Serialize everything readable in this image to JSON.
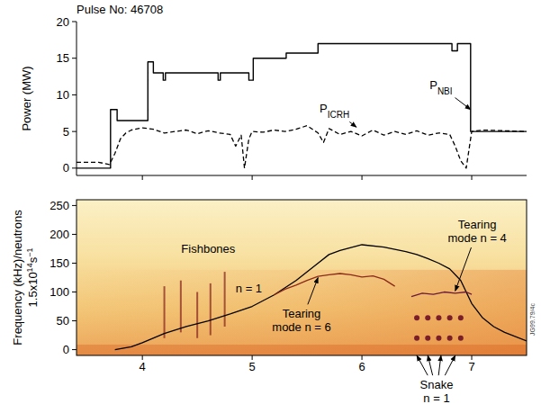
{
  "chart_data": [
    {
      "type": "line",
      "title": "Pulse No: 46708",
      "y_label": "Power (MW)",
      "xlim": [
        3.4,
        7.5
      ],
      "xticks": [
        4,
        5,
        6,
        7
      ],
      "ylim": [
        -1,
        20
      ],
      "yticks": [
        0,
        5,
        10,
        15,
        20
      ],
      "tick_labels": "y",
      "grid": false,
      "series": [
        {
          "color": "#000000",
          "line_style": "solid",
          "x": [
            3.4,
            3.71,
            3.71,
            3.77,
            3.77,
            4.05,
            4.05,
            4.1,
            4.1,
            4.19,
            4.19,
            4.21,
            4.21,
            4.69,
            4.69,
            4.71,
            4.71,
            4.97,
            4.97,
            5.01,
            5.01,
            5.31,
            5.31,
            5.6,
            5.6,
            6.82,
            6.82,
            6.87,
            6.87,
            6.99,
            6.99,
            7.5
          ],
          "values": [
            0,
            0,
            8,
            8,
            6.5,
            6.5,
            14.5,
            14.5,
            13,
            13,
            12,
            12,
            13,
            13,
            12,
            12,
            13,
            13,
            12,
            12,
            15,
            15,
            15.7,
            15.7,
            17,
            17,
            16,
            16,
            17,
            17,
            5,
            5
          ]
        },
        {
          "color": "#000000",
          "line_style": "dashed",
          "x": [
            3.4,
            3.6,
            3.7,
            3.75,
            3.8,
            3.85,
            3.9,
            4.0,
            4.1,
            4.2,
            4.3,
            4.4,
            4.5,
            4.6,
            4.7,
            4.8,
            4.85,
            4.9,
            4.93,
            4.97,
            5.0,
            5.1,
            5.2,
            5.3,
            5.4,
            5.5,
            5.6,
            5.65,
            5.7,
            5.8,
            5.9,
            6.0,
            6.1,
            6.2,
            6.3,
            6.4,
            6.5,
            6.6,
            6.7,
            6.8,
            6.85,
            6.9,
            6.95,
            7.0,
            7.1,
            7.3,
            7.5
          ],
          "values": [
            0.8,
            0.8,
            0.5,
            2,
            4,
            4.8,
            5.2,
            5.5,
            5.3,
            4.8,
            5,
            5.2,
            4.7,
            5.1,
            4.8,
            4.6,
            3,
            4.5,
            0,
            4,
            5,
            4.9,
            5.2,
            5.0,
            5.3,
            5.8,
            4.8,
            3.5,
            5.4,
            4.6,
            5.0,
            4.4,
            5.2,
            4.5,
            5,
            4.6,
            5.1,
            4.5,
            4.8,
            4.6,
            3,
            1,
            0,
            5,
            5.2,
            5.1,
            5
          ]
        }
      ],
      "annotations": [
        {
          "text": "P",
          "subscript": "NBI",
          "x": 6.72,
          "y": 10.8,
          "arrow_to": [
            6.99,
            8
          ]
        },
        {
          "text": "P",
          "subscript": "ICRH",
          "x": 5.75,
          "y": 7.6,
          "arrow_to": [
            5.95,
            5.6
          ]
        }
      ]
    },
    {
      "type": "line",
      "y_label_lines": [
        [
          {
            "text": "Frequency (kHz)/neutrons"
          }
        ],
        [
          {
            "text": "1.5x10"
          },
          {
            "text": "14",
            "superscript": true
          },
          {
            "text": "s"
          },
          {
            "text": "−1",
            "superscript": true
          }
        ]
      ],
      "xlim": [
        3.4,
        7.5
      ],
      "xticks": [
        4,
        5,
        6,
        7
      ],
      "ylim": [
        -10,
        260
      ],
      "yticks": [
        0,
        50,
        100,
        150,
        200,
        250
      ],
      "grid": false,
      "series": [
        {
          "color": "#000000",
          "line_style": "solid",
          "x": [
            3.75,
            3.9,
            4.0,
            4.2,
            4.4,
            4.6,
            4.8,
            5.0,
            5.2,
            5.4,
            5.6,
            5.7,
            5.8,
            6.0,
            6.2,
            6.4,
            6.5,
            6.6,
            6.7,
            6.8,
            6.9,
            7.0,
            7.1,
            7.2,
            7.3,
            7.5
          ],
          "values": [
            0,
            5,
            12,
            28,
            40,
            50,
            62,
            75,
            95,
            120,
            150,
            165,
            172,
            182,
            178,
            170,
            165,
            158,
            150,
            140,
            120,
            80,
            55,
            40,
            30,
            15
          ]
        },
        {
          "color": "#8b2a1a",
          "line_style": "solid",
          "x": [
            5.2,
            5.3,
            5.4,
            5.5,
            5.6,
            5.7,
            5.8,
            5.9,
            6.0,
            6.1,
            6.2,
            6.3
          ],
          "values": [
            95,
            105,
            112,
            120,
            127,
            130,
            132,
            130,
            126,
            128,
            122,
            110
          ]
        },
        {
          "color": "#6a1a3a",
          "line_style": "solid",
          "x": [
            6.45,
            6.55,
            6.65,
            6.75,
            6.85,
            6.95,
            7.0
          ],
          "values": [
            92,
            98,
            96,
            100,
            98,
            100,
            96
          ]
        },
        {
          "type": "scatter",
          "marker": "circle",
          "color": "#7a1f2a",
          "x": [
            6.5,
            6.6,
            6.7,
            6.8,
            6.9
          ],
          "values": [
            55,
            55,
            55,
            55,
            55
          ]
        },
        {
          "type": "scatter",
          "marker": "circle",
          "color": "#7a1f2a",
          "x": [
            6.5,
            6.6,
            6.7,
            6.8,
            6.9
          ],
          "values": [
            20,
            20,
            20,
            20,
            20
          ]
        }
      ],
      "bursts": {
        "color": "#8a2a20",
        "x": [
          4.2,
          4.35,
          4.5,
          4.62,
          4.75
        ],
        "low": [
          20,
          30,
          20,
          25,
          40
        ],
        "high": [
          110,
          120,
          100,
          115,
          135
        ]
      },
      "annotations": [
        {
          "lines": [
            "Fishbones"
          ],
          "x": 4.6,
          "y": 168
        },
        {
          "lines": [
            "n = 1"
          ],
          "x": 4.97,
          "y": 100
        },
        {
          "lines": [
            "Tearing",
            "mode n = 6"
          ],
          "x": 5.45,
          "y": 55,
          "arrow_to": [
            5.6,
            125
          ]
        },
        {
          "lines": [
            "Tearing",
            "mode n = 4"
          ],
          "x": 7.05,
          "y": 210,
          "arrow_to": [
            6.85,
            102
          ]
        },
        {
          "lines": [
            "Snake",
            "n = 1"
          ],
          "x": 6.68,
          "y": -68,
          "arrows_to": [
            [
              6.5,
              -10
            ],
            [
              6.6,
              -10
            ],
            [
              6.72,
              -10
            ],
            [
              6.85,
              -10
            ]
          ]
        }
      ],
      "stamp": "JG99.79/4c"
    }
  ]
}
